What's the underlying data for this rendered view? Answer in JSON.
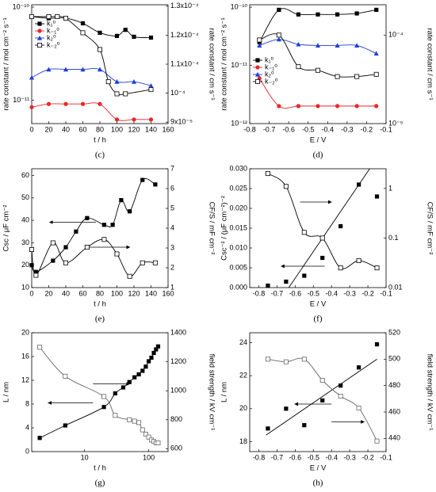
{
  "chart_data": [
    {
      "type": "line",
      "caption": "(c)",
      "xlabel": "t / h",
      "ylabel": "rate constant / mol cm⁻² s⁻¹",
      "y2label": "rate constant / cm s⁻¹",
      "xlim": [
        0,
        160
      ],
      "xticks": [
        0,
        20,
        40,
        60,
        80,
        100,
        120,
        140,
        160
      ],
      "ylim": [
        5.6e-12,
        1.06e-10
      ],
      "ylog": true,
      "yticks": [
        {
          "value": 1e-10,
          "label": "10⁻¹⁰"
        },
        {
          "value": 1e-11,
          "label": "10⁻¹¹"
        }
      ],
      "y2lim": [
        8.95e-05,
        0.0001305
      ],
      "y2ticks": [
        {
          "value": 9e-05,
          "label": "9x10⁻⁵"
        },
        {
          "value": 0.0001,
          "label": "10⁻⁴"
        },
        {
          "value": 0.00011,
          "label": "1.1x10⁻⁴"
        },
        {
          "value": 0.00012,
          "label": "1.2x10⁻⁴"
        },
        {
          "value": 0.00013,
          "label": "1.3x10⁻⁴"
        }
      ],
      "legend": "upper left",
      "series": [
        {
          "name": "k₁⁰",
          "color": "#000000",
          "marker": "square",
          "curve": "smooth",
          "x": [
            0,
            20,
            40,
            60,
            80,
            100,
            110,
            120,
            140
          ],
          "values": [
            7.9e-11,
            7.6e-11,
            7.6e-11,
            6.7e-11,
            5.3e-11,
            4.9e-11,
            5.7e-11,
            4.8e-11,
            4.7e-11
          ]
        },
        {
          "name": "k₋₁⁰",
          "color": "#e8262a",
          "marker": "circle",
          "curve": "smooth",
          "x": [
            0,
            20,
            40,
            60,
            80,
            100,
            120,
            140
          ],
          "values": [
            8.4e-12,
            9.1e-12,
            9.1e-12,
            9.1e-12,
            9.1e-12,
            6.2e-12,
            6.2e-12,
            6.2e-12
          ]
        },
        {
          "name": "k₂⁰",
          "color": "#1f3fd6",
          "marker": "triangle",
          "curve": "smooth",
          "x": [
            0,
            20,
            40,
            60,
            80,
            100,
            120,
            140
          ],
          "values": [
            1.75e-11,
            2.14e-11,
            2.14e-11,
            2.14e-11,
            2.14e-11,
            1.58e-11,
            1.58e-11,
            1.43e-11
          ]
        },
        {
          "name": "k₋₂⁰",
          "color": "#000000",
          "marker": "open-square",
          "curve": "smooth",
          "x": [
            0,
            20,
            30,
            40,
            60,
            80,
            90,
            100,
            110,
            140
          ],
          "values": [
            7.9e-11,
            7.9e-11,
            7.9e-11,
            7.6e-11,
            5.3e-11,
            3.5e-11,
            1.58e-11,
            1.17e-11,
            1.17e-11,
            1.3e-11
          ]
        }
      ]
    },
    {
      "type": "line",
      "caption": "(d)",
      "xlabel": "E / V",
      "ylabel": "rate constant / mol cm⁻² s⁻¹",
      "y2label": "rate constant / cm s⁻¹",
      "xlim": [
        -0.8,
        -0.1
      ],
      "xticks": [
        -0.8,
        -0.7,
        -0.6,
        -0.5,
        -0.4,
        -0.3,
        -0.2,
        -0.1
      ],
      "ylim": [
        1e-12,
        1.1e-10
      ],
      "ylog": true,
      "yticks": [
        {
          "value": 1e-12,
          "label": "10⁻¹²"
        },
        {
          "value": 1e-11,
          "label": "10⁻¹¹"
        },
        {
          "value": 1e-10,
          "label": "10⁻¹⁰"
        }
      ],
      "y2lim": [
        1e-05,
        0.00022
      ],
      "y2log": true,
      "y2ticks": [
        {
          "value": 1e-05,
          "label": "10⁻⁵"
        },
        {
          "value": 0.0001,
          "label": "10⁻⁴"
        }
      ],
      "legend": "center left",
      "series": [
        {
          "name": "k₁⁰",
          "color": "#000000",
          "marker": "square",
          "curve": "smooth",
          "x": [
            -0.75,
            -0.65,
            -0.55,
            -0.45,
            -0.35,
            -0.25,
            -0.15
          ],
          "values": [
            2.5e-11,
            9e-11,
            7.5e-11,
            7.5e-11,
            7.5e-11,
            7.8e-11,
            9e-11
          ]
        },
        {
          "name": "k₋₁⁰",
          "color": "#e8262a",
          "marker": "circle",
          "curve": "smooth",
          "x": [
            -0.75,
            -0.65,
            -0.55,
            -0.45,
            -0.35,
            -0.25,
            -0.15
          ],
          "values": [
            6e-12,
            2e-12,
            2e-12,
            2e-12,
            2e-12,
            2e-12,
            2e-12
          ]
        },
        {
          "name": "k₂⁰",
          "color": "#1f3fd6",
          "marker": "triangle",
          "curve": "smooth",
          "x": [
            -0.75,
            -0.65,
            -0.55,
            -0.45,
            -0.35,
            -0.25,
            -0.15
          ],
          "values": [
            2.2e-11,
            2.8e-11,
            2.3e-11,
            2.2e-11,
            2.2e-11,
            2.2e-11,
            1.6e-11
          ]
        },
        {
          "name": "k₋₂⁰",
          "color": "#000000",
          "marker": "open-square",
          "curve": "smooth",
          "axis": "y2",
          "x": [
            -0.75,
            -0.65,
            -0.55,
            -0.45,
            -0.35,
            -0.25,
            -0.15
          ],
          "values": [
            8.8e-05,
            0.0001,
            4.4e-05,
            4e-05,
            3.4e-05,
            3.4e-05,
            3.6e-05
          ]
        }
      ]
    },
    {
      "type": "line",
      "caption": "(e)",
      "xlabel": "t / h",
      "ylabel": "Csc / μF cm⁻²",
      "y2label": "CF/S / mF cm⁻²",
      "xlim": [
        0,
        160
      ],
      "xticks": [
        0,
        20,
        40,
        60,
        80,
        100,
        120,
        140,
        160
      ],
      "ylim": [
        10,
        63
      ],
      "yticks": [
        10,
        20,
        30,
        40,
        50,
        60
      ],
      "y2lim": [
        1,
        7
      ],
      "y2ticks": [
        1,
        2,
        3,
        4,
        5,
        6,
        7
      ],
      "series": [
        {
          "color": "#000000",
          "marker": "square",
          "curve": "smooth",
          "x": [
            0,
            5,
            25,
            40,
            52,
            65,
            85,
            95,
            105,
            115,
            130,
            145
          ],
          "values": [
            20,
            17,
            22,
            28,
            35,
            41,
            38,
            38,
            49,
            44,
            58,
            56
          ]
        },
        {
          "color": "#000000",
          "marker": "open-square",
          "curve": "smooth",
          "axis": "y2",
          "x": [
            0,
            5,
            25,
            40,
            65,
            85,
            100,
            115,
            130,
            145
          ],
          "values": [
            2.92,
            1.62,
            3.26,
            2.25,
            3.04,
            3.43,
            2.7,
            1.57,
            2.25,
            2.25
          ]
        }
      ]
    },
    {
      "type": "line",
      "caption": "(f)",
      "xlabel": "E / V",
      "ylabel": "Csc⁻² / (μF cm⁻²)⁻²",
      "y2label": "CF/S / mF cm⁻²",
      "xlim": [
        -0.85,
        -0.1
      ],
      "xticks": [
        -0.8,
        -0.7,
        -0.6,
        -0.5,
        -0.4,
        -0.3,
        -0.2,
        -0.1
      ],
      "ylim": [
        0,
        0.03
      ],
      "yticks": [
        {
          "value": 0,
          "label": "0.000"
        },
        {
          "value": 0.005,
          "label": "0.005"
        },
        {
          "value": 0.01,
          "label": "0.010"
        },
        {
          "value": 0.015,
          "label": "0.015"
        },
        {
          "value": 0.02,
          "label": "0.020"
        },
        {
          "value": 0.025,
          "label": "0.025"
        },
        {
          "value": 0.03,
          "label": "0.030"
        }
      ],
      "y2lim": [
        0.01,
        2.5
      ],
      "y2log": true,
      "y2ticks": [
        0.01,
        0.1,
        1
      ],
      "series": [
        {
          "color": "#000000",
          "marker": "square",
          "line": false,
          "x": [
            -0.75,
            -0.65,
            -0.55,
            -0.45,
            -0.35,
            -0.25,
            -0.15
          ],
          "values": [
            0.0005,
            0.0015,
            0.003,
            0.0075,
            0.0155,
            0.026,
            0.023
          ]
        },
        {
          "color": "#000000",
          "curve": "straight",
          "x": [
            -0.635,
            -0.19
          ],
          "values": [
            0,
            0.03
          ]
        },
        {
          "color": "#000000",
          "marker": "open-square",
          "curve": "smooth",
          "axis": "y2",
          "x": [
            -0.75,
            -0.65,
            -0.55,
            -0.45,
            -0.35,
            -0.25,
            -0.15
          ],
          "values": [
            2,
            1.1,
            0.13,
            0.1,
            0.025,
            0.035,
            0.025
          ]
        }
      ]
    },
    {
      "type": "line",
      "caption": "(g)",
      "xlabel": "t / h",
      "ylabel": "L / nm",
      "y2label": "field strength / kV cm⁻¹",
      "xlim": [
        1.5,
        200
      ],
      "xlog": true,
      "xticks": [
        10,
        100
      ],
      "ylim": [
        0,
        20
      ],
      "yticks": [
        0,
        4,
        8,
        12,
        16,
        20
      ],
      "y2lim": [
        580,
        1400
      ],
      "y2ticks": [
        600,
        800,
        1000,
        1200,
        1400
      ],
      "series": [
        {
          "color": "#000000",
          "marker": "square",
          "curve": "smooth",
          "x": [
            2,
            5,
            20,
            30,
            40,
            50,
            60,
            70,
            80,
            90,
            100,
            110,
            120,
            130,
            140
          ],
          "values": [
            2.3,
            4.4,
            7.5,
            9.8,
            10.8,
            11.7,
            12.5,
            13,
            13.6,
            14.3,
            15.2,
            15.8,
            16.6,
            17.2,
            17.7
          ]
        },
        {
          "color": "#666666",
          "marker": "open-square",
          "curve": "smooth",
          "axis": "y2",
          "x": [
            2,
            5,
            20,
            30,
            50,
            60,
            70,
            80,
            90,
            100,
            110,
            120,
            130,
            140
          ],
          "values": [
            1300,
            1100,
            960,
            830,
            800,
            790,
            780,
            730,
            700,
            680,
            660,
            650,
            640,
            640
          ]
        }
      ]
    },
    {
      "type": "line",
      "caption": "(h)",
      "xlabel": "E / V",
      "ylabel": "L / nm",
      "y2label": "field strength / kV cm⁻¹",
      "xlim": [
        -0.85,
        -0.1
      ],
      "xticks": [
        -0.8,
        -0.7,
        -0.6,
        -0.5,
        -0.4,
        -0.3,
        -0.2,
        -0.1
      ],
      "ylim": [
        17.4,
        24.6
      ],
      "yticks": [
        18,
        20,
        22,
        24
      ],
      "y2lim": [
        430,
        520
      ],
      "y2ticks": [
        440,
        460,
        480,
        500,
        520
      ],
      "series": [
        {
          "color": "#000000",
          "marker": "square",
          "line": false,
          "x": [
            -0.75,
            -0.65,
            -0.55,
            -0.45,
            -0.35,
            -0.25,
            -0.15
          ],
          "values": [
            18.8,
            20,
            19,
            20.5,
            21.4,
            22.5,
            23.9
          ]
        },
        {
          "color": "#000000",
          "curve": "straight",
          "x": [
            -0.76,
            -0.15
          ],
          "values": [
            18.4,
            23
          ]
        },
        {
          "color": "#666666",
          "marker": "open-square",
          "curve": "smooth",
          "axis": "y2",
          "x": [
            -0.75,
            -0.65,
            -0.55,
            -0.45,
            -0.35,
            -0.25,
            -0.15
          ],
          "values": [
            500,
            498,
            500,
            484,
            472,
            463,
            438
          ]
        }
      ]
    }
  ]
}
